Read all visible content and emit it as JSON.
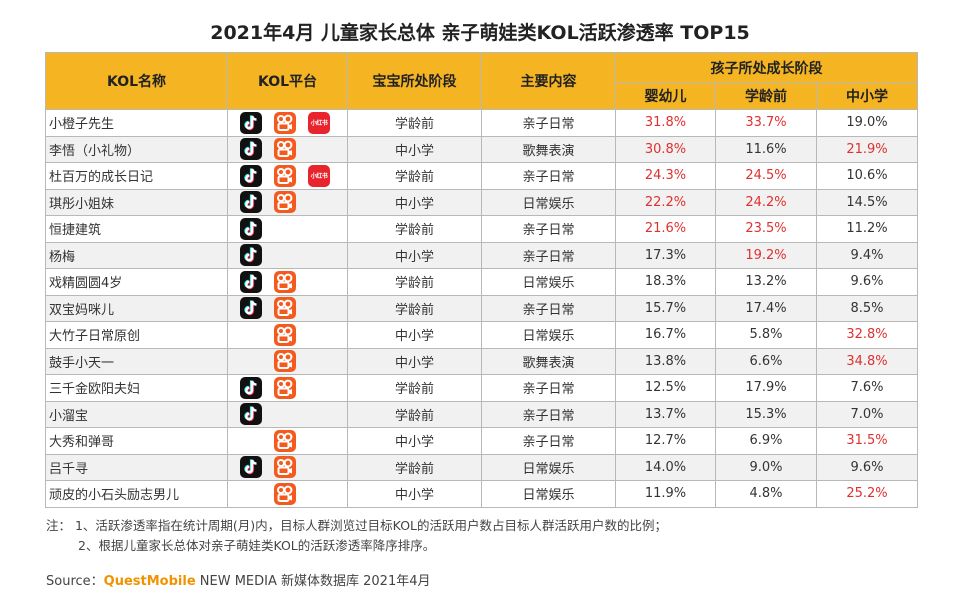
{
  "title": "2021年4月 儿童家长总体 亲子萌娃类KOL活跃渗透率 TOP15",
  "headers": {
    "name": "KOL名称",
    "platform": "KOL平台",
    "stage": "宝宝所处阶段",
    "content": "主要内容",
    "group": "孩子所处成长阶段",
    "sub": [
      "婴幼儿",
      "学龄前",
      "中小学"
    ]
  },
  "platform_icons": {
    "douyin": "douyin-app-icon",
    "kuaishou": "kuaishou-app-icon",
    "xiaohongshu": "xiaohongshu-app-icon",
    "xiaohongshu_text": "小红书"
  },
  "highlight_color": "#e03030",
  "header_color": "#f5b523",
  "rows": [
    {
      "name": "小橙子先生",
      "platforms": [
        "douyin",
        "kuaishou",
        "xiaohongshu"
      ],
      "stage": "学龄前",
      "content": "亲子日常",
      "v": [
        "31.8%",
        "33.7%",
        "19.0%"
      ],
      "hl": [
        true,
        true,
        false
      ]
    },
    {
      "name": "李悟（小礼物）",
      "platforms": [
        "douyin",
        "kuaishou"
      ],
      "stage": "中小学",
      "content": "歌舞表演",
      "v": [
        "30.8%",
        "11.6%",
        "21.9%"
      ],
      "hl": [
        true,
        false,
        true
      ]
    },
    {
      "name": "杜百万的成长日记",
      "platforms": [
        "douyin",
        "kuaishou",
        "xiaohongshu"
      ],
      "stage": "学龄前",
      "content": "亲子日常",
      "v": [
        "24.3%",
        "24.5%",
        "10.6%"
      ],
      "hl": [
        true,
        true,
        false
      ]
    },
    {
      "name": "琪彤小姐妹",
      "platforms": [
        "douyin",
        "kuaishou"
      ],
      "stage": "中小学",
      "content": "日常娱乐",
      "v": [
        "22.2%",
        "24.2%",
        "14.5%"
      ],
      "hl": [
        true,
        true,
        false
      ]
    },
    {
      "name": "恒捷建筑",
      "platforms": [
        "douyin"
      ],
      "stage": "学龄前",
      "content": "亲子日常",
      "v": [
        "21.6%",
        "23.5%",
        "11.2%"
      ],
      "hl": [
        true,
        true,
        false
      ]
    },
    {
      "name": "杨梅",
      "platforms": [
        "douyin"
      ],
      "stage": "中小学",
      "content": "亲子日常",
      "v": [
        "17.3%",
        "19.2%",
        "9.4%"
      ],
      "hl": [
        false,
        true,
        false
      ]
    },
    {
      "name": "戏精圆圆4岁",
      "platforms": [
        "douyin",
        "kuaishou"
      ],
      "stage": "学龄前",
      "content": "日常娱乐",
      "v": [
        "18.3%",
        "13.2%",
        "9.6%"
      ],
      "hl": [
        false,
        false,
        false
      ]
    },
    {
      "name": "双宝妈咪儿",
      "platforms": [
        "douyin",
        "kuaishou"
      ],
      "stage": "学龄前",
      "content": "亲子日常",
      "v": [
        "15.7%",
        "17.4%",
        "8.5%"
      ],
      "hl": [
        false,
        false,
        false
      ]
    },
    {
      "name": "大竹子日常原创",
      "platforms": [
        "kuaishou"
      ],
      "stage": "中小学",
      "content": "日常娱乐",
      "v": [
        "16.7%",
        "5.8%",
        "32.8%"
      ],
      "hl": [
        false,
        false,
        true
      ]
    },
    {
      "name": "鼓手小天一",
      "platforms": [
        "kuaishou"
      ],
      "stage": "中小学",
      "content": "歌舞表演",
      "v": [
        "13.8%",
        "6.6%",
        "34.8%"
      ],
      "hl": [
        false,
        false,
        true
      ]
    },
    {
      "name": "三千金欧阳夫妇",
      "platforms": [
        "douyin",
        "kuaishou"
      ],
      "stage": "学龄前",
      "content": "亲子日常",
      "v": [
        "12.5%",
        "17.9%",
        "7.6%"
      ],
      "hl": [
        false,
        false,
        false
      ]
    },
    {
      "name": "小溜宝",
      "platforms": [
        "douyin"
      ],
      "stage": "学龄前",
      "content": "亲子日常",
      "v": [
        "13.7%",
        "15.3%",
        "7.0%"
      ],
      "hl": [
        false,
        false,
        false
      ]
    },
    {
      "name": "大秀和弹哥",
      "platforms": [
        "kuaishou"
      ],
      "stage": "中小学",
      "content": "亲子日常",
      "v": [
        "12.7%",
        "6.9%",
        "31.5%"
      ],
      "hl": [
        false,
        false,
        true
      ]
    },
    {
      "name": "吕千寻",
      "platforms": [
        "douyin",
        "kuaishou"
      ],
      "stage": "学龄前",
      "content": "日常娱乐",
      "v": [
        "14.0%",
        "9.0%",
        "9.6%"
      ],
      "hl": [
        false,
        false,
        false
      ]
    },
    {
      "name": "顽皮的小石头励志男儿",
      "platforms": [
        "kuaishou"
      ],
      "stage": "中小学",
      "content": "日常娱乐",
      "v": [
        "11.9%",
        "4.8%",
        "25.2%"
      ],
      "hl": [
        false,
        false,
        true
      ]
    }
  ],
  "notes": {
    "line1": "注：  1、活跃渗透率指在统计周期(月)内，目标人群浏览过目标KOL的活跃用户数占目标人群活跃用户数的比例；",
    "line2": "2、根据儿童家长总体对亲子萌娃类KOL的活跃渗透率降序排序。"
  },
  "source": {
    "prefix": "Source：",
    "brand": "QuestMobile",
    "suffix": " NEW MEDIA 新媒体数据库 2021年4月"
  }
}
